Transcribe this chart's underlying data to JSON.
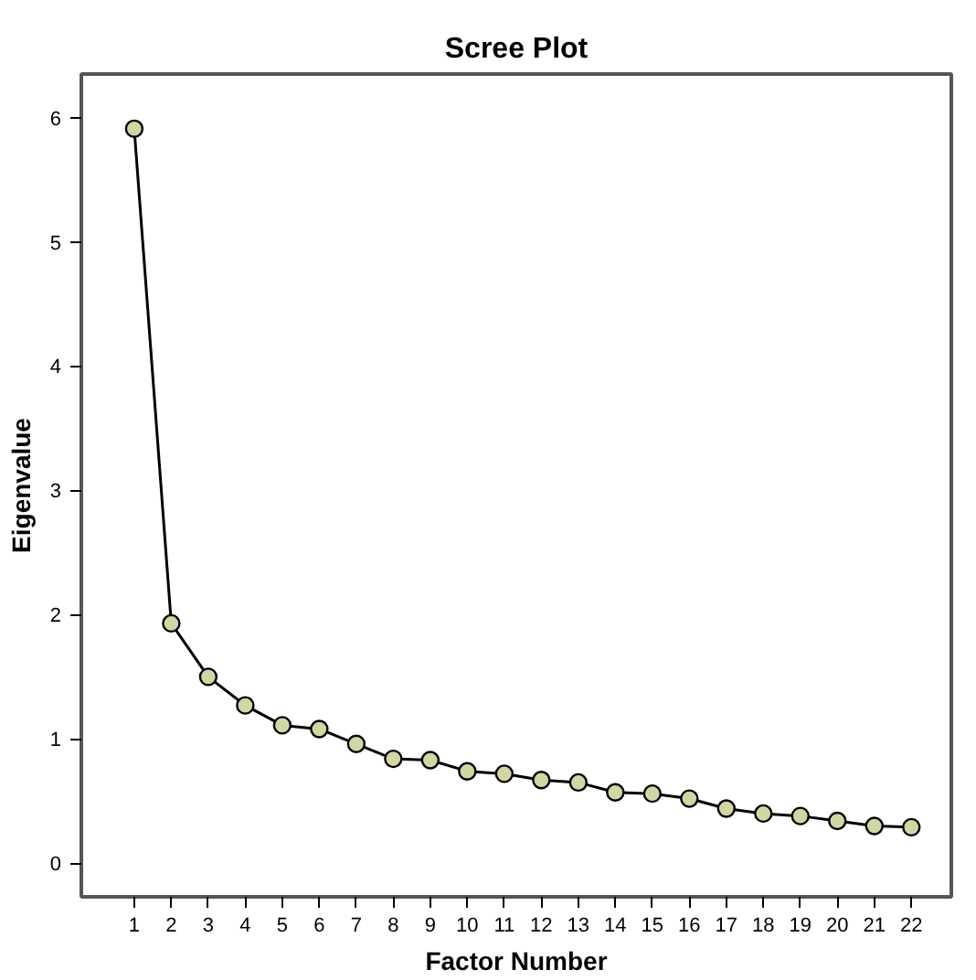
{
  "chart_data": {
    "type": "line",
    "title": "Scree Plot",
    "xlabel": "Factor Number",
    "ylabel": "Eigenvalue",
    "x": [
      1,
      2,
      3,
      4,
      5,
      6,
      7,
      8,
      9,
      10,
      11,
      12,
      13,
      14,
      15,
      16,
      17,
      18,
      19,
      20,
      21,
      22
    ],
    "series": [
      {
        "color": "#000000",
        "values": [
          5.91,
          1.93,
          1.5,
          1.27,
          1.11,
          1.08,
          0.96,
          0.84,
          0.83,
          0.74,
          0.72,
          0.67,
          0.65,
          0.57,
          0.56,
          0.52,
          0.44,
          0.4,
          0.38,
          0.34,
          0.3,
          0.29
        ]
      }
    ],
    "xlim": [
      -0.43,
      23.08
    ],
    "ylim": [
      -0.27,
      6.35
    ],
    "xticks": [
      1,
      2,
      3,
      4,
      5,
      6,
      7,
      8,
      9,
      10,
      11,
      12,
      13,
      14,
      15,
      16,
      17,
      18,
      19,
      20,
      21,
      22
    ],
    "yticks": [
      0,
      1,
      2,
      3,
      4,
      5,
      6
    ],
    "grid": false,
    "marker": "circle",
    "line_style": "solid"
  }
}
